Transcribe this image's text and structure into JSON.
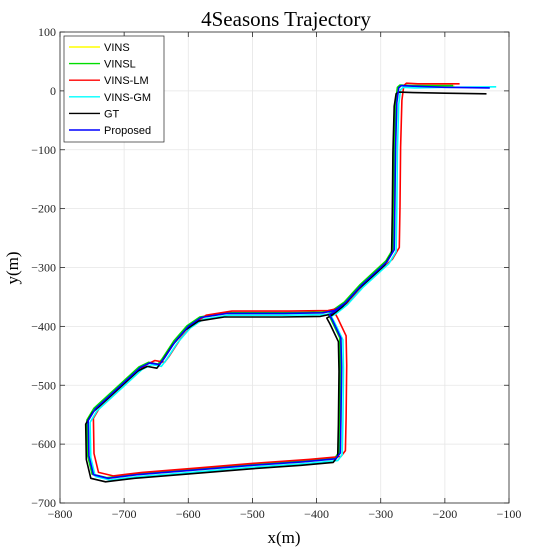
{
  "chart_data": {
    "type": "line",
    "title": "4Seasons Trajectory",
    "xlabel": "x(m)",
    "ylabel": "y(m)",
    "xlim": [
      -800,
      -100
    ],
    "ylim": [
      -700,
      100
    ],
    "xticks": [
      -800,
      -700,
      -600,
      -500,
      -400,
      -300,
      -200,
      -100
    ],
    "yticks": [
      100,
      0,
      -100,
      -200,
      -300,
      -400,
      -500,
      -600,
      -700
    ],
    "xtick_labels": [
      "−800",
      "−700",
      "−600",
      "−500",
      "−400",
      "−300",
      "−200",
      "−100"
    ],
    "ytick_labels": [
      "100",
      "0",
      "−100",
      "−200",
      "−300",
      "−400",
      "−500",
      "−600",
      "−700"
    ],
    "grid": true,
    "legend_position": "top-left",
    "series": [
      {
        "name": "VINS",
        "color": "#ffff00",
        "dx": 0,
        "dy": 0
      },
      {
        "name": "VINSL",
        "color": "#00dd00",
        "dx": -2,
        "dy": 1
      },
      {
        "name": "VINS-LM",
        "color": "#ff0000",
        "dx": 8,
        "dy": 4
      },
      {
        "name": "VINS-GM",
        "color": "#00ffff",
        "dx": 3,
        "dy": -3
      },
      {
        "name": "GT",
        "color": "#000000",
        "dx": -4,
        "dy": -6
      },
      {
        "name": "Proposed",
        "color": "#0000ff",
        "dx": 0,
        "dy": 0
      }
    ],
    "path": [
      [
        -185,
        8
      ],
      [
        -210,
        8
      ],
      [
        -250,
        8
      ],
      [
        -268,
        9
      ],
      [
        -272,
        5
      ],
      [
        -275,
        -20
      ],
      [
        -277,
        -100
      ],
      [
        -278,
        -200
      ],
      [
        -279,
        -270
      ],
      [
        -290,
        -290
      ],
      [
        -330,
        -330
      ],
      [
        -355,
        -360
      ],
      [
        -372,
        -375
      ],
      [
        -380,
        -380
      ],
      [
        -375,
        -390
      ],
      [
        -362,
        -420
      ],
      [
        -361,
        -470
      ],
      [
        -362,
        -560
      ],
      [
        -363,
        -615
      ],
      [
        -370,
        -625
      ],
      [
        -420,
        -630
      ],
      [
        -500,
        -636
      ],
      [
        -600,
        -645
      ],
      [
        -680,
        -652
      ],
      [
        -725,
        -658
      ],
      [
        -748,
        -652
      ],
      [
        -755,
        -620
      ],
      [
        -756,
        -560
      ],
      [
        -745,
        -540
      ],
      [
        -700,
        -495
      ],
      [
        -675,
        -470
      ],
      [
        -660,
        -462
      ],
      [
        -645,
        -465
      ],
      [
        -638,
        -455
      ],
      [
        -620,
        -425
      ],
      [
        -600,
        -400
      ],
      [
        -580,
        -385
      ],
      [
        -540,
        -378
      ],
      [
        -450,
        -378
      ],
      [
        -390,
        -377
      ],
      [
        -372,
        -373
      ],
      [
        -355,
        -360
      ]
    ]
  }
}
